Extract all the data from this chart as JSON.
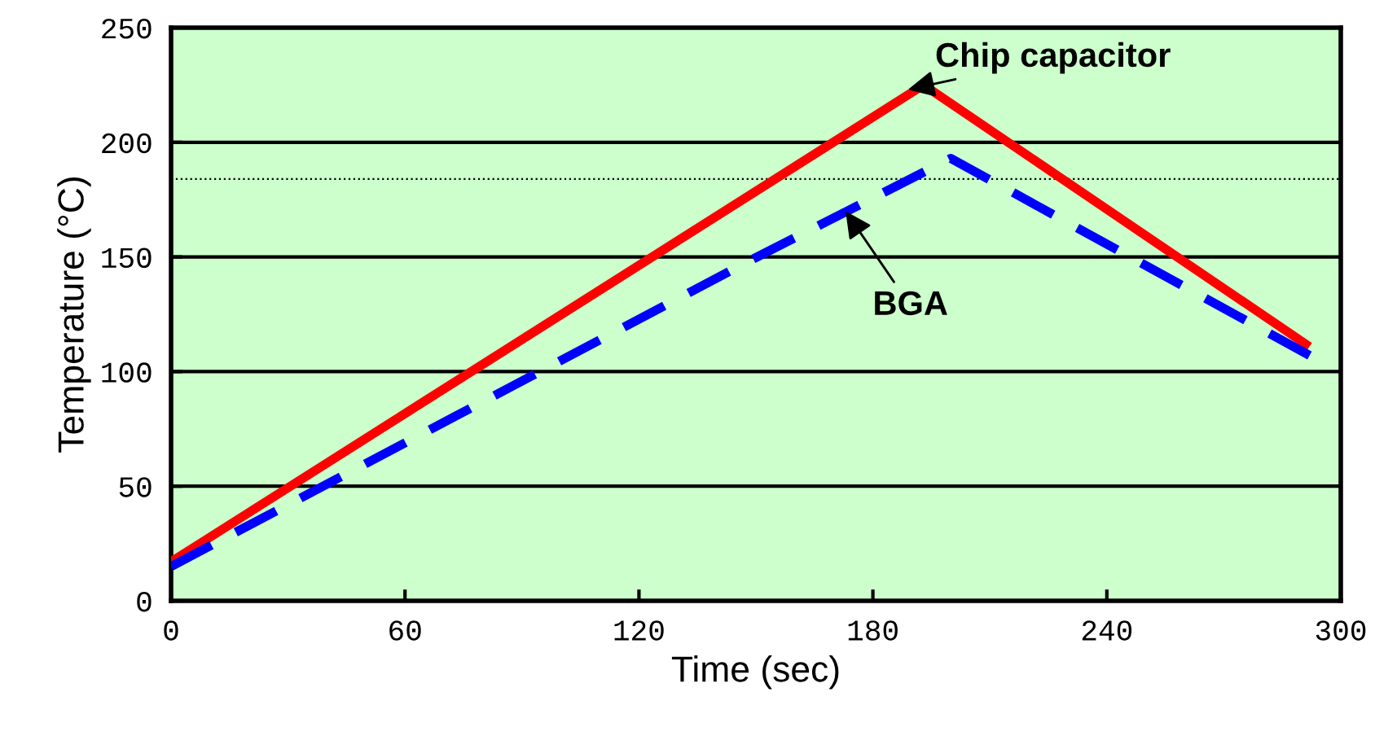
{
  "chart_data": {
    "type": "line",
    "xlabel": "Time (sec)",
    "ylabel": "Temperature (°C)",
    "xlim": [
      0,
      300
    ],
    "xticks": [
      0,
      60,
      120,
      180,
      240,
      300
    ],
    "ylim": [
      0,
      250
    ],
    "yticks": [
      0,
      50,
      100,
      150,
      200,
      250
    ],
    "grid": "y",
    "legend": false,
    "marker": "none",
    "series": [
      {
        "color": "#ff0000",
        "line_style": "solid",
        "x": [
          0,
          193,
          291
        ],
        "values": [
          17,
          225,
          112
        ]
      },
      {
        "color": "#0000ff",
        "line_style": "dashed",
        "x": [
          0,
          148,
          200,
          292
        ],
        "values": [
          15,
          148,
          193,
          107
        ]
      }
    ],
    "ref_lines": [
      {
        "axis": "y",
        "value": 184,
        "color": "#000000",
        "line_style": "dotted"
      }
    ],
    "annotations": [
      {
        "text": "Chip capacitor",
        "x": 189,
        "y": 223
      },
      {
        "text": "BGA",
        "x": 173,
        "y": 170
      }
    ]
  }
}
